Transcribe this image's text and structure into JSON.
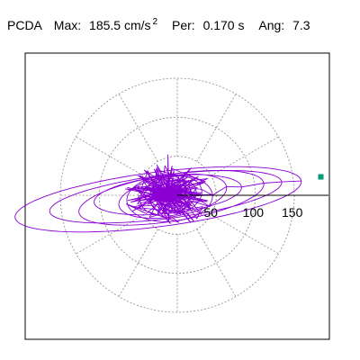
{
  "header": {
    "component": "PCDA",
    "max_label": "Max:",
    "max_value": "185.5",
    "max_unit": "cm/s",
    "max_unit_exponent": "2",
    "per_label": "Per:",
    "per_value": "0.170",
    "per_unit": "s",
    "ang_label": "Ang:",
    "ang_value": "7.3"
  },
  "chart_data": {
    "type": "polar-orbit",
    "title": "",
    "units": "cm/s^2",
    "radial_rings": [
      50,
      100,
      150
    ],
    "radial_tick_labels": [
      "50",
      "100",
      "150"
    ],
    "angular_spokes_deg": [
      0,
      30,
      60,
      90,
      120,
      150,
      180,
      210,
      240,
      270,
      300,
      330
    ],
    "grid": true,
    "max_amplitude": 185.5,
    "direction_angle_deg": 7.3,
    "peak_marker": {
      "x": 184,
      "y": 23.6
    },
    "trace_color": "#8a00d4",
    "marker_color": "#00997a",
    "grid_color": "#888888",
    "orbit_components": [
      {
        "rx": 185,
        "ry": 35,
        "rotation_deg": 7.3,
        "cx": -25,
        "cy": -2
      },
      {
        "rx": 150,
        "ry": 28,
        "rotation_deg": 7.3,
        "cx": -15,
        "cy": 0
      },
      {
        "rx": 120,
        "ry": 30,
        "rotation_deg": 9,
        "cx": -8,
        "cy": -2
      },
      {
        "rx": 95,
        "ry": 24,
        "rotation_deg": 6,
        "cx": -12,
        "cy": 2
      },
      {
        "rx": 70,
        "ry": 26,
        "rotation_deg": 10,
        "cx": -6,
        "cy": 0
      },
      {
        "rx": 55,
        "ry": 30,
        "rotation_deg": 4,
        "cx": -10,
        "cy": -3
      },
      {
        "rx": 40,
        "ry": 25,
        "rotation_deg": 12,
        "cx": -8,
        "cy": 1
      },
      {
        "rx": 30,
        "ry": 20,
        "rotation_deg": 20,
        "cx": -5,
        "cy": 0
      },
      {
        "rx": 25,
        "ry": 18,
        "rotation_deg": -10,
        "cx": -7,
        "cy": 2
      },
      {
        "rx": 20,
        "ry": 15,
        "rotation_deg": 30,
        "cx": -4,
        "cy": -1
      }
    ]
  }
}
